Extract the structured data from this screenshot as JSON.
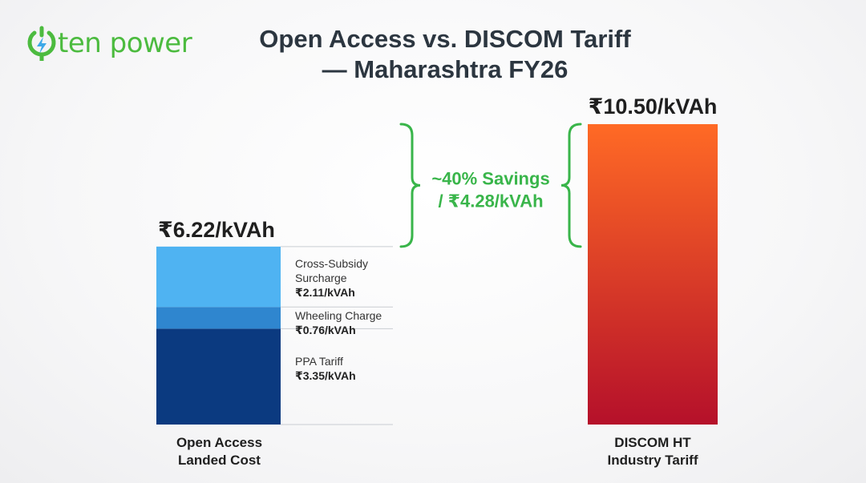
{
  "brand": {
    "logo_text": "ten power",
    "brand_color": "#4cbb3f",
    "accent_color": "#3da9e8",
    "icon": "power-bolt-icon"
  },
  "chart_data": {
    "type": "bar",
    "stacked": true,
    "title_line1": "Open Access vs. DISCOM Tariff",
    "title_line2": "— Maharashtra FY26",
    "unit": "₹/kVAh",
    "ylim": [
      0,
      10.5
    ],
    "bars": [
      {
        "category_line1": "Open Access",
        "category_line2": "Landed Cost",
        "total": 6.22,
        "total_label": "₹6.22/kVAh",
        "segments": [
          {
            "name": "PPA Tariff",
            "value": 3.35,
            "value_label": "₹3.35/kVAh",
            "color": "#0b3a80"
          },
          {
            "name": "Wheeling Charge",
            "value": 0.76,
            "value_label": "₹0.76/kVAh",
            "color": "#2f86cf"
          },
          {
            "name_line1": "Cross-Subsidy",
            "name_line2": "Surcharge",
            "value": 2.11,
            "value_label": "₹2.11/kVAh",
            "color": "#4fb3f2"
          }
        ]
      },
      {
        "category_line1": "DISCOM HT",
        "category_line2": "Industry Tariff",
        "total": 10.5,
        "total_label": "₹10.50/kVAh",
        "color_top": "#ff6a25",
        "color_bottom": "#b5102a"
      }
    ],
    "annotation": {
      "line1": "~40% Savings",
      "line2": "/ ₹4.28/kVAh",
      "savings_value": 4.28,
      "color": "#39b54a"
    }
  }
}
